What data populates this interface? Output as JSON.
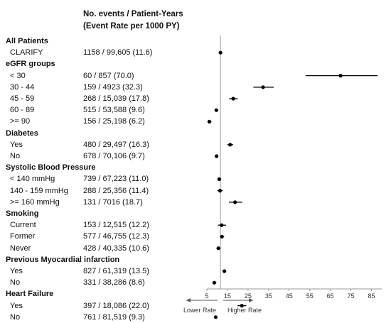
{
  "header": {
    "line1": "No. events / Patient-Years",
    "line2": "(Event Rate per 1000 PY)"
  },
  "rows": [
    {
      "label": "All Patients",
      "kind": "group"
    },
    {
      "label": "CLARIFY",
      "kind": "sub",
      "text": "1158 / 99,605 (11.6)"
    },
    {
      "label": "eGFR groups",
      "kind": "group"
    },
    {
      "label": "< 30",
      "kind": "sub",
      "text": "60 / 857 (70.0)"
    },
    {
      "label": "30 - 44",
      "kind": "sub",
      "text": "159 / 4923 (32.3)"
    },
    {
      "label": "45 - 59",
      "kind": "sub",
      "text": "268 / 15,039 (17.8)"
    },
    {
      "label": "60 - 89",
      "kind": "sub",
      "text": "515 / 53,588 (9.6)"
    },
    {
      "label": ">= 90",
      "kind": "sub",
      "text": "156 / 25,198 (6.2)"
    },
    {
      "label": "Diabetes",
      "kind": "group"
    },
    {
      "label": "Yes",
      "kind": "sub",
      "text": "480 / 29,497 (16.3)"
    },
    {
      "label": "No",
      "kind": "sub",
      "text": "678 / 70,106 (9.7)"
    },
    {
      "label": "Systolic Blood Pressure",
      "kind": "group"
    },
    {
      "label": "< 140 mmHg",
      "kind": "sub",
      "text": "739 / 67,223 (11.0)"
    },
    {
      "label": "140 - 159 mmHg",
      "kind": "sub",
      "text": "288 / 25,356 (11.4)"
    },
    {
      "label": ">= 160 mmHg",
      "kind": "sub",
      "text": "131 / 7016 (18.7)"
    },
    {
      "label": "Smoking",
      "kind": "group"
    },
    {
      "label": "Current",
      "kind": "sub",
      "text": "153 / 12,515 (12.2)"
    },
    {
      "label": "Former",
      "kind": "sub",
      "text": "577 / 46,755 (12.3)"
    },
    {
      "label": "Never",
      "kind": "sub",
      "text": "428 / 40,335 (10.6)"
    },
    {
      "label": "Previous Myocardial infarction",
      "kind": "group"
    },
    {
      "label": "Yes",
      "kind": "sub",
      "text": "827 / 61,319 (13.5)"
    },
    {
      "label": "No",
      "kind": "sub",
      "text": "331 / 38,286 (8.6)"
    },
    {
      "label": "Heart Failure",
      "kind": "group"
    },
    {
      "label": "Yes",
      "kind": "sub",
      "text": "397 / 18,086 (22.0)"
    },
    {
      "label": "No",
      "kind": "sub",
      "text": "761 / 81,519 (9.3)"
    }
  ],
  "chart_data": {
    "type": "forest",
    "xlim": [
      5,
      90
    ],
    "xticks": [
      5,
      15,
      25,
      35,
      45,
      55,
      65,
      75,
      85
    ],
    "reference_line": 11.6,
    "left_arrow_label": "Lower Rate",
    "right_arrow_label": "Higher Rate",
    "points": [
      {
        "row": "CLARIFY",
        "estimate": 11.6,
        "ci": [
          11.0,
          12.3
        ]
      },
      {
        "row": "< 30",
        "estimate": 70.0,
        "ci": [
          53.0,
          88.0
        ]
      },
      {
        "row": "30 - 44",
        "estimate": 32.3,
        "ci": [
          27.6,
          37.5
        ]
      },
      {
        "row": "45 - 59",
        "estimate": 17.8,
        "ci": [
          15.8,
          20.0
        ]
      },
      {
        "row": "60 - 89",
        "estimate": 9.6,
        "ci": [
          8.8,
          10.5
        ]
      },
      {
        "row": ">= 90",
        "estimate": 6.2,
        "ci": [
          5.3,
          7.2
        ]
      },
      {
        "row": "Yes",
        "estimate": 16.3,
        "ci": [
          14.9,
          17.8
        ]
      },
      {
        "row": "No",
        "estimate": 9.7,
        "ci": [
          9.0,
          10.4
        ]
      },
      {
        "row": "< 140 mmHg",
        "estimate": 11.0,
        "ci": [
          10.2,
          11.8
        ]
      },
      {
        "row": "140 - 159 mmHg",
        "estimate": 11.4,
        "ci": [
          10.1,
          12.8
        ]
      },
      {
        "row": ">= 160 mmHg",
        "estimate": 18.7,
        "ci": [
          15.7,
          22.2
        ]
      },
      {
        "row": "Current",
        "estimate": 12.2,
        "ci": [
          10.4,
          14.3
        ]
      },
      {
        "row": "Former",
        "estimate": 12.3,
        "ci": [
          11.4,
          13.4
        ]
      },
      {
        "row": "Never",
        "estimate": 10.6,
        "ci": [
          9.6,
          11.7
        ]
      },
      {
        "row": "Yes",
        "estimate": 13.5,
        "ci": [
          12.6,
          14.4
        ]
      },
      {
        "row": "No",
        "estimate": 8.6,
        "ci": [
          7.8,
          9.6
        ]
      },
      {
        "row": "Yes",
        "estimate": 22.0,
        "ci": [
          19.9,
          24.2
        ]
      },
      {
        "row": "No",
        "estimate": 9.3,
        "ci": [
          8.7,
          10.0
        ]
      }
    ]
  }
}
